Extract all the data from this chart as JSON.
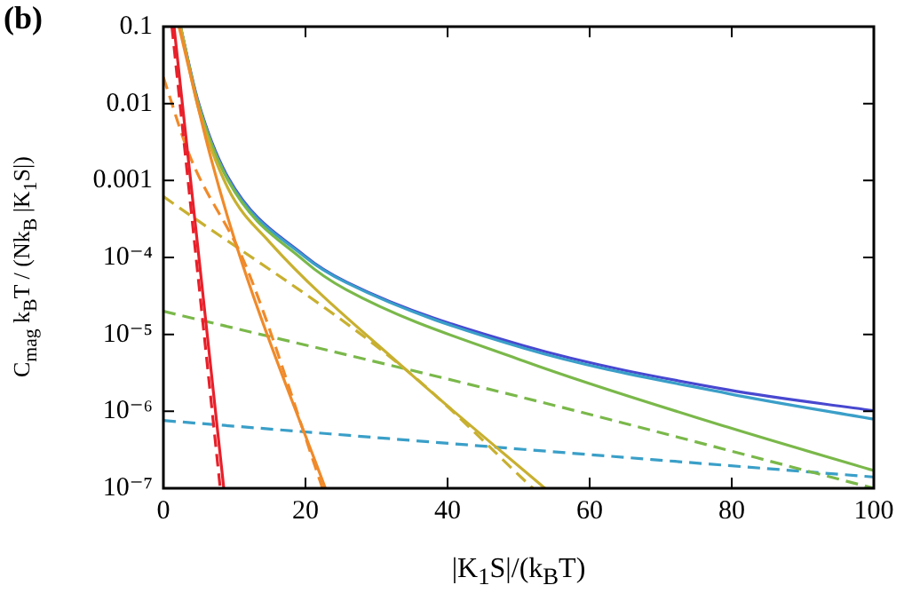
{
  "chart_data": {
    "type": "line",
    "title": "(b)",
    "xlabel": "|K$_{1}$S|/(k$_{B}$T)",
    "ylabel": "C$_{mag}$ k$_{B}$T / (Nk$_{B}$ |K$_{1}$S|)",
    "log": "y",
    "xlim": [
      0,
      100
    ],
    "xticks": [
      0,
      20,
      40,
      60,
      80,
      100
    ],
    "ylim": [
      1e-07,
      0.1
    ],
    "yticks": [
      {
        "value": 1e-07,
        "label": "10⁻⁷"
      },
      {
        "value": 1e-06,
        "label": "10⁻⁶"
      },
      {
        "value": 1e-05,
        "label": "10⁻⁵"
      },
      {
        "value": 0.0001,
        "label": "10⁻⁴"
      },
      0.001,
      0.01,
      0.1
    ],
    "series": [
      {
        "color": "#e8202a",
        "line_style": "solid",
        "x": [
          1.5,
          8.5
        ],
        "values": [
          0.1,
          1e-07
        ]
      },
      {
        "color": "#e8202a",
        "line_style": "dashed",
        "x": [
          1.2,
          8.0
        ],
        "values": [
          0.1,
          1e-07
        ]
      },
      {
        "color": "#f08a2a",
        "line_style": "solid",
        "x": [
          2.2,
          6.6,
          11.2,
          22.8
        ],
        "values": [
          0.1,
          0.0021,
          7.8e-05,
          1e-07
        ]
      },
      {
        "color": "#f08a2a",
        "line_style": "dashed",
        "x": [
          0,
          3.7,
          11.6,
          22.4
        ],
        "values": [
          0.022,
          0.0021,
          7.8e-05,
          1e-07
        ]
      },
      {
        "color": "#c8b030",
        "line_style": "dashed",
        "x": [
          0,
          34.1,
          52
        ],
        "values": [
          0.00062,
          3.5e-06,
          1e-07
        ]
      },
      {
        "color": "#c8b030",
        "line_style": "solid",
        "x": [
          2.4,
          4.9,
          9.1,
          14.9,
          34.1,
          53.7
        ],
        "values": [
          0.1,
          0.0089,
          0.00079,
          0.00016,
          3.5e-06,
          1e-07
        ]
      },
      {
        "color": "#7ab84a",
        "line_style": "dashed",
        "x": [
          0,
          50.75,
          100
        ],
        "values": [
          2e-05,
          1.5e-06,
          1e-07
        ]
      },
      {
        "color": "#3a9fc8",
        "line_style": "dashed",
        "x": [
          0,
          50.75,
          100
        ],
        "values": [
          7.6e-07,
          3.2e-07,
          1.4e-07
        ]
      },
      {
        "color": "#7ab84a",
        "line_style": "solid",
        "x": [
          2.4,
          4.9,
          9.1,
          19.9,
          25.75,
          50.75,
          79.5,
          100
        ],
        "values": [
          0.1,
          0.01,
          0.001,
          8.9e-05,
          3.8e-05,
          4.5e-06,
          6.2e-07,
          1.7e-07
        ]
      },
      {
        "color": "#3a9fc8",
        "line_style": "solid",
        "x": [
          2.4,
          4.9,
          9.1,
          19.9,
          25.75,
          50.75,
          79.5,
          100
        ],
        "values": [
          0.1,
          0.01,
          0.00105,
          0.000102,
          4.7e-05,
          6.6e-06,
          1.7e-06,
          7.9e-07
        ]
      },
      {
        "color": "#4848d0",
        "line_style": "solid",
        "x": [
          2.4,
          4.9,
          9.1,
          19.9,
          25.75,
          50.75,
          79.5,
          100
        ],
        "values": [
          0.1,
          0.0106,
          0.0011,
          0.000105,
          4.8e-05,
          7.1e-06,
          1.9e-06,
          1.02e-06
        ]
      }
    ]
  }
}
